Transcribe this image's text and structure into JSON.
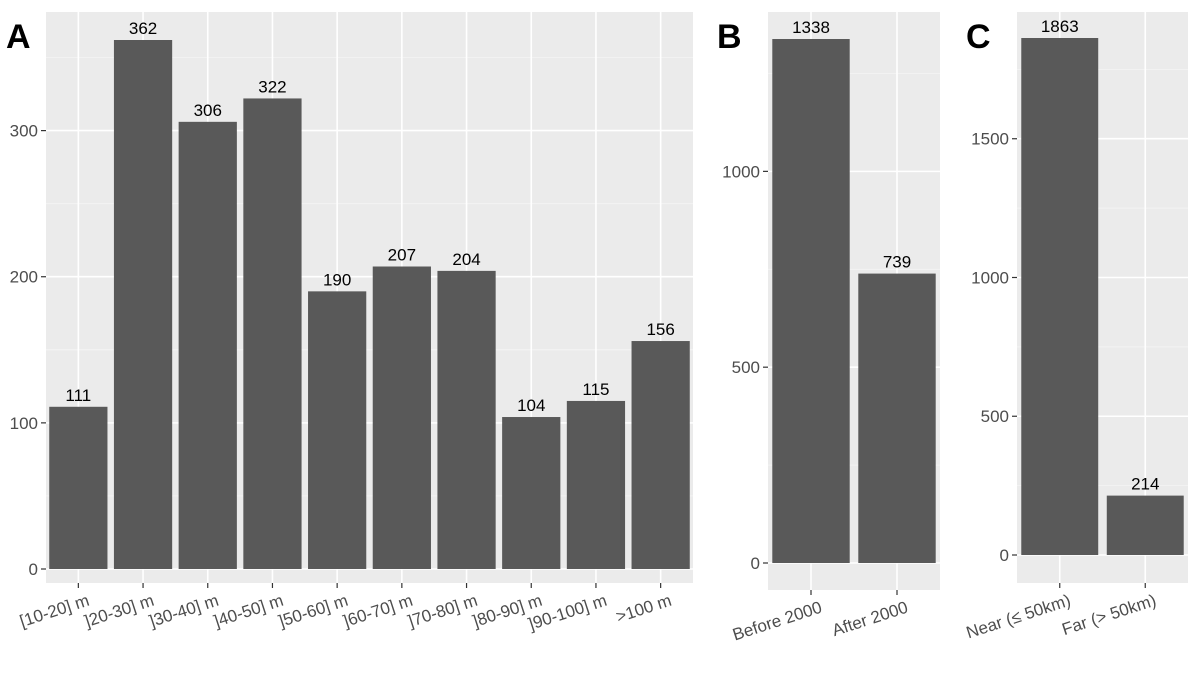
{
  "chart_data": [
    {
      "panel": "A",
      "type": "bar",
      "categories": [
        "[10-20] m",
        "]20-30] m",
        "]30-40] m",
        "]40-50] m",
        "]50-60] m",
        "]60-70] m",
        "]70-80] m",
        "]80-90] m",
        "]90-100] m",
        ">100 m"
      ],
      "values": [
        111,
        362,
        306,
        322,
        190,
        207,
        204,
        104,
        115,
        156
      ],
      "yticks": [
        0,
        100,
        200,
        300
      ],
      "ylim": [
        0,
        375
      ],
      "grid": true,
      "bar_color": "#595959",
      "panel_background": "#ebebeb"
    },
    {
      "panel": "B",
      "type": "bar",
      "categories": [
        "Before 2000",
        "After 2000"
      ],
      "values": [
        1338,
        739
      ],
      "yticks": [
        0,
        500,
        1000
      ],
      "ylim": [
        0,
        1400
      ],
      "grid": true,
      "bar_color": "#595959",
      "panel_background": "#ebebeb"
    },
    {
      "panel": "C",
      "type": "bar",
      "categories": [
        "Near (≤ 50km)",
        "Far (> 50km)"
      ],
      "values": [
        1863,
        214
      ],
      "yticks": [
        0,
        500,
        1000,
        1500
      ],
      "ylim": [
        0,
        1950
      ],
      "grid": true,
      "bar_color": "#595959",
      "panel_background": "#ebebeb"
    }
  ]
}
